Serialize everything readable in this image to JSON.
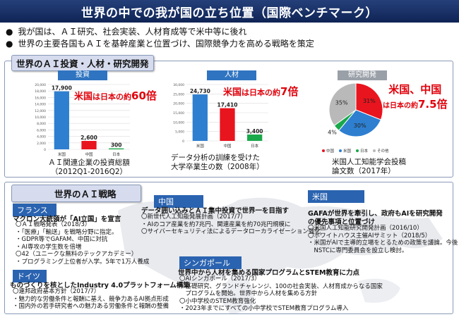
{
  "title": "世界の中での我が国の立ち位置（国際ベンチマーク）",
  "bullets": [
    "我が国は、ＡＩ研究、社会実装、人材育成等で米中等に後れ",
    "世界の主要各国もＡＩを基幹産業と位置づけ、国際競争力を高める戦略を策定"
  ],
  "section1_title": "世界のＡＩ投資・人材・研究開発",
  "section2_title": "世界のＡＩ戦略",
  "charts": {
    "investment": {
      "header": "投資",
      "multiplier_prefix": "米国",
      "multiplier_mid": "は日本の約",
      "multiplier_value": "60倍",
      "caption1": "ＡＩ関連企業の投資総額",
      "caption2": "（2012Q1-2016Q2）"
    },
    "talent": {
      "header": "人材",
      "multiplier_prefix": "米国",
      "multiplier_mid": "は日本の約",
      "multiplier_value": "7倍",
      "caption1": "データ分析の訓練を受けた",
      "caption2": "大学卒業生の数（2008年）"
    },
    "research": {
      "header": "研究開発",
      "multiplier_line1": "米国、中国",
      "multiplier_mid": "は日本の約",
      "multiplier_value": "7.5倍",
      "caption1": "米国人工知能学会投稿",
      "caption2": "論文数（2017年）"
    }
  },
  "chart_data": [
    {
      "type": "bar",
      "categories": [
        "米国",
        "中国",
        "日本"
      ],
      "values": [
        17900,
        2600,
        300
      ],
      "labels": [
        "17,900",
        "2,600",
        "300"
      ],
      "colors": [
        "#2e7fd0",
        "#e8141e",
        "#19a84a"
      ],
      "yticks": [
        0,
        2000,
        4000,
        6000,
        8000,
        10000,
        12000,
        14000,
        16000,
        18000,
        20000
      ],
      "ylim": [
        0,
        20000
      ],
      "grid": true
    },
    {
      "type": "bar",
      "categories": [
        "米国",
        "中国",
        "日本"
      ],
      "values": [
        24730,
        17410,
        3400
      ],
      "labels": [
        "24,730",
        "17,410",
        "3,400"
      ],
      "colors": [
        "#2e7fd0",
        "#e8141e",
        "#19a84a"
      ],
      "yticks": [
        0,
        5000,
        10000,
        15000,
        20000,
        25000,
        30000
      ],
      "ylim": [
        0,
        30000
      ],
      "grid": true
    },
    {
      "type": "pie",
      "categories": [
        "中国",
        "米国",
        "日本",
        "その他"
      ],
      "values": [
        31,
        30,
        4,
        35
      ],
      "labels": [
        "31%",
        "30%",
        "4%",
        "35%"
      ],
      "colors": [
        "#e8141e",
        "#2e7fd0",
        "#19a84a",
        "#b9b9b9"
      ],
      "legend_placement": "bottom"
    }
  ],
  "strategy": {
    "france": {
      "name": "フランス",
      "headline": "マクロン大統領が「AI立国」を宣言",
      "items": [
        "〇ＡＩ戦略発表（2018/3）",
        "・「医療」「輸送」を戦略分野に指定。",
        "・GDPR等でGAFAM、中国に対抗",
        "・AI専攻の学生数を倍増",
        "〇42（ユニークな無料のテックアカデミー）",
        "・プログラミング上位者が入学。5年で1万人養成"
      ]
    },
    "germany": {
      "name": "ドイツ",
      "headline": "ものづくりを核としたIndustry 4.0プラットフォーム構築",
      "items": [
        "〇連邦政府基本方針（2017/7）",
        "・魅力的な労働条件と報酬に基え、競争力あるAI拠点形成",
        "・国内外の若手研究者への魅力ある労働条件と報酬の整備"
      ]
    },
    "china": {
      "name": "中国",
      "headline": "データ囲い込みとＡＩ集中投資で世界一を目指す",
      "items": [
        "〇新世代人工知能発展計画（2017/7）",
        "・AIのコア産業を約7兆円、関連産業を約70兆円規模に",
        "〇サイバーセキュリティ法によるデータローカライゼーション強化"
      ]
    },
    "usa": {
      "name": "米国",
      "headline1": "GAFAが世界を牽引し、政府もAIを研究開発",
      "headline2": "の優先事項と位置づけ",
      "items": [
        "〇米国人工知能研究開発計画（2016/10）",
        "〇ホワイトハウス主催AIサミット（2018/5）",
        "・米国がAIで主導的立場をとるための政策を議論。今後",
        "　NSTCに専門委員会を設立し検討。"
      ]
    },
    "singapore": {
      "name": "シンガポール",
      "headline": "世界中から人材を集める国家プログラムとSTEM教育に力点",
      "items": [
        "〇AIシンガポール（2017/3）",
        "・基礎研究、グランドチャレンジ、100の社会実装、人材育成からなる国家",
        "　プログラムを開始。世界中から人材を集める方針",
        "〇小中学校のSTEM教育強化",
        "・2023年までにすべての小中学校でSTEM教育プログラム導入"
      ]
    }
  }
}
